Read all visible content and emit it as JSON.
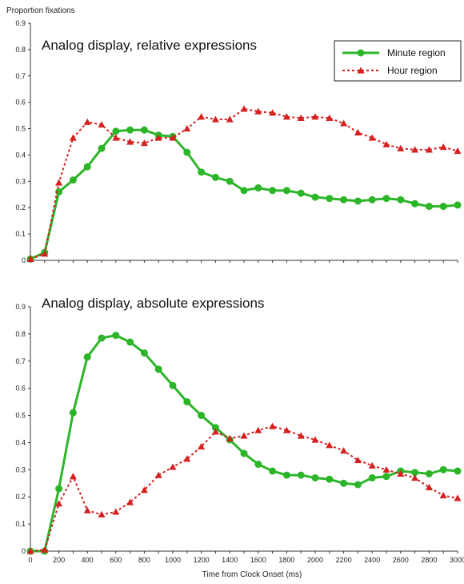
{
  "chart_data": [
    {
      "type": "line",
      "title": "Analog display, relative expressions",
      "ylabel": "Proportion fixations",
      "xlabel": "",
      "xlim": [
        0,
        3000
      ],
      "ylim": [
        0,
        0.9
      ],
      "yticks": [
        "0",
        "0.1",
        "0.2",
        "0.3",
        "0.4",
        "0.5",
        "0.6",
        "0.7",
        "0.8",
        "0.9"
      ],
      "legend": "top-right",
      "x": [
        0,
        100,
        200,
        300,
        400,
        500,
        600,
        700,
        800,
        900,
        1000,
        1100,
        1200,
        1300,
        1400,
        1500,
        1600,
        1700,
        1800,
        1900,
        2000,
        2100,
        2200,
        2300,
        2400,
        2500,
        2600,
        2700,
        2800,
        2900,
        3000
      ],
      "series": [
        {
          "name": "Minute region",
          "color": "#2db52a",
          "marker": "circle",
          "style": "solid",
          "values": [
            0.005,
            0.03,
            0.26,
            0.305,
            0.355,
            0.425,
            0.49,
            0.495,
            0.495,
            0.475,
            0.47,
            0.41,
            0.335,
            0.315,
            0.3,
            0.265,
            0.275,
            0.265,
            0.265,
            0.255,
            0.24,
            0.235,
            0.23,
            0.225,
            0.23,
            0.235,
            0.23,
            0.215,
            0.205,
            0.205,
            0.21
          ]
        },
        {
          "name": "Hour region",
          "color": "#d42020",
          "marker": "triangle",
          "style": "dotted",
          "values": [
            0.005,
            0.025,
            0.295,
            0.465,
            0.525,
            0.515,
            0.465,
            0.45,
            0.445,
            0.465,
            0.465,
            0.5,
            0.545,
            0.535,
            0.535,
            0.575,
            0.565,
            0.56,
            0.545,
            0.54,
            0.545,
            0.54,
            0.52,
            0.485,
            0.465,
            0.44,
            0.425,
            0.42,
            0.42,
            0.43,
            0.415
          ]
        }
      ]
    },
    {
      "type": "line",
      "title": "Analog display, absolute expressions",
      "ylabel": "",
      "xlabel": "Time from Clock Onset (ms)",
      "xlim": [
        0,
        3000
      ],
      "ylim": [
        0,
        0.9
      ],
      "yticks": [
        "0",
        "0.1",
        "0.2",
        "0.3",
        "0.4",
        "0.5",
        "0.6",
        "0.7",
        "0.8",
        "0.9"
      ],
      "xticks": [
        "0",
        "200",
        "400",
        "600",
        "800",
        "1000",
        "1200",
        "1400",
        "1600",
        "1800",
        "2000",
        "2200",
        "2400",
        "2600",
        "2800",
        "3000"
      ],
      "x": [
        0,
        100,
        200,
        300,
        400,
        500,
        600,
        700,
        800,
        900,
        1000,
        1100,
        1200,
        1300,
        1400,
        1500,
        1600,
        1700,
        1800,
        1900,
        2000,
        2100,
        2200,
        2300,
        2400,
        2500,
        2600,
        2700,
        2800,
        2900,
        3000
      ],
      "series": [
        {
          "name": "Minute region",
          "color": "#2db52a",
          "marker": "circle",
          "style": "solid",
          "values": [
            0.0,
            0.0,
            0.23,
            0.51,
            0.715,
            0.785,
            0.795,
            0.77,
            0.73,
            0.67,
            0.61,
            0.55,
            0.5,
            0.455,
            0.41,
            0.36,
            0.32,
            0.295,
            0.28,
            0.28,
            0.27,
            0.265,
            0.25,
            0.245,
            0.27,
            0.275,
            0.295,
            0.29,
            0.285,
            0.3,
            0.295
          ]
        },
        {
          "name": "Hour region",
          "color": "#d42020",
          "marker": "triangle",
          "style": "dotted",
          "values": [
            0.0,
            0.005,
            0.175,
            0.275,
            0.15,
            0.135,
            0.145,
            0.18,
            0.225,
            0.28,
            0.31,
            0.34,
            0.385,
            0.44,
            0.415,
            0.425,
            0.445,
            0.46,
            0.445,
            0.425,
            0.41,
            0.39,
            0.37,
            0.335,
            0.315,
            0.3,
            0.285,
            0.27,
            0.235,
            0.205,
            0.195
          ]
        }
      ]
    }
  ]
}
